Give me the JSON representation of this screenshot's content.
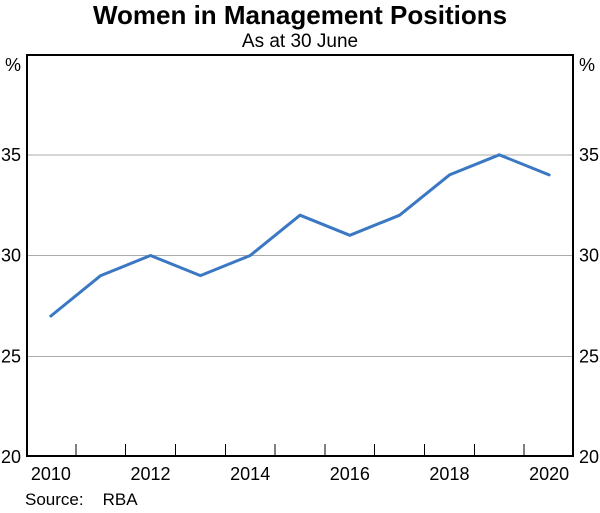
{
  "chart_data": {
    "type": "line",
    "title": "Women in Management Positions",
    "subtitle": "As at 30 June",
    "x": [
      2010,
      2011,
      2012,
      2013,
      2014,
      2015,
      2016,
      2017,
      2018,
      2019,
      2020
    ],
    "values": [
      27,
      29,
      30,
      29,
      30,
      32,
      31,
      32,
      34,
      35,
      34
    ],
    "xlabel": "",
    "ylabel_left": "%",
    "ylabel_right": "%",
    "ylim": [
      20,
      40
    ],
    "yticks": [
      20,
      25,
      30,
      35
    ],
    "xtick_labels": [
      "2010",
      "2012",
      "2014",
      "2016",
      "2018",
      "2020"
    ],
    "grid": true,
    "legend_position": "none",
    "line_color": "#3B78C3",
    "grid_color": "#ABABAB",
    "axis_color": "#000000"
  },
  "labels": {
    "source_label": "Source:",
    "source_value": "RBA"
  }
}
